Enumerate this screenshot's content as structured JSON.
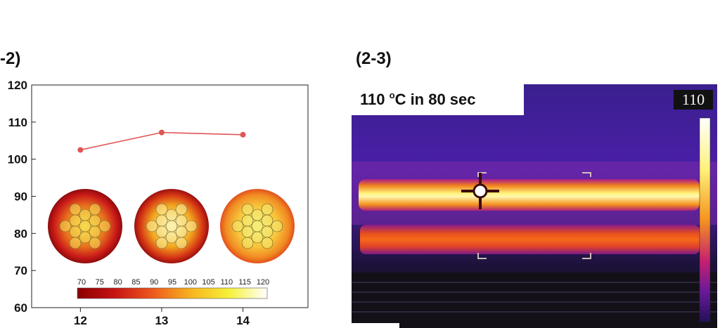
{
  "panels": {
    "left_label": "-2)",
    "right_label": "(2-3)"
  },
  "chart_data": {
    "type": "line",
    "x": [
      12,
      13,
      14
    ],
    "y": [
      102.5,
      107.2,
      106.6
    ],
    "xlim": [
      11.4,
      14.8
    ],
    "ylim": [
      60,
      120
    ],
    "x_ticks": [
      "12",
      "13",
      "14"
    ],
    "y_ticks": [
      "60",
      "70",
      "80",
      "90",
      "100",
      "110",
      "120"
    ],
    "line_color": "#e05555",
    "colorbar": {
      "ticks": [
        "70",
        "75",
        "80",
        "85",
        "90",
        "95",
        "100",
        "105",
        "110",
        "115",
        "120"
      ],
      "range": [
        70,
        120
      ]
    }
  },
  "thermal_image": {
    "caption_value": "110 ",
    "caption_unit_sup": "o",
    "caption_rest": "C in 80 sec",
    "scale_max": "110"
  }
}
